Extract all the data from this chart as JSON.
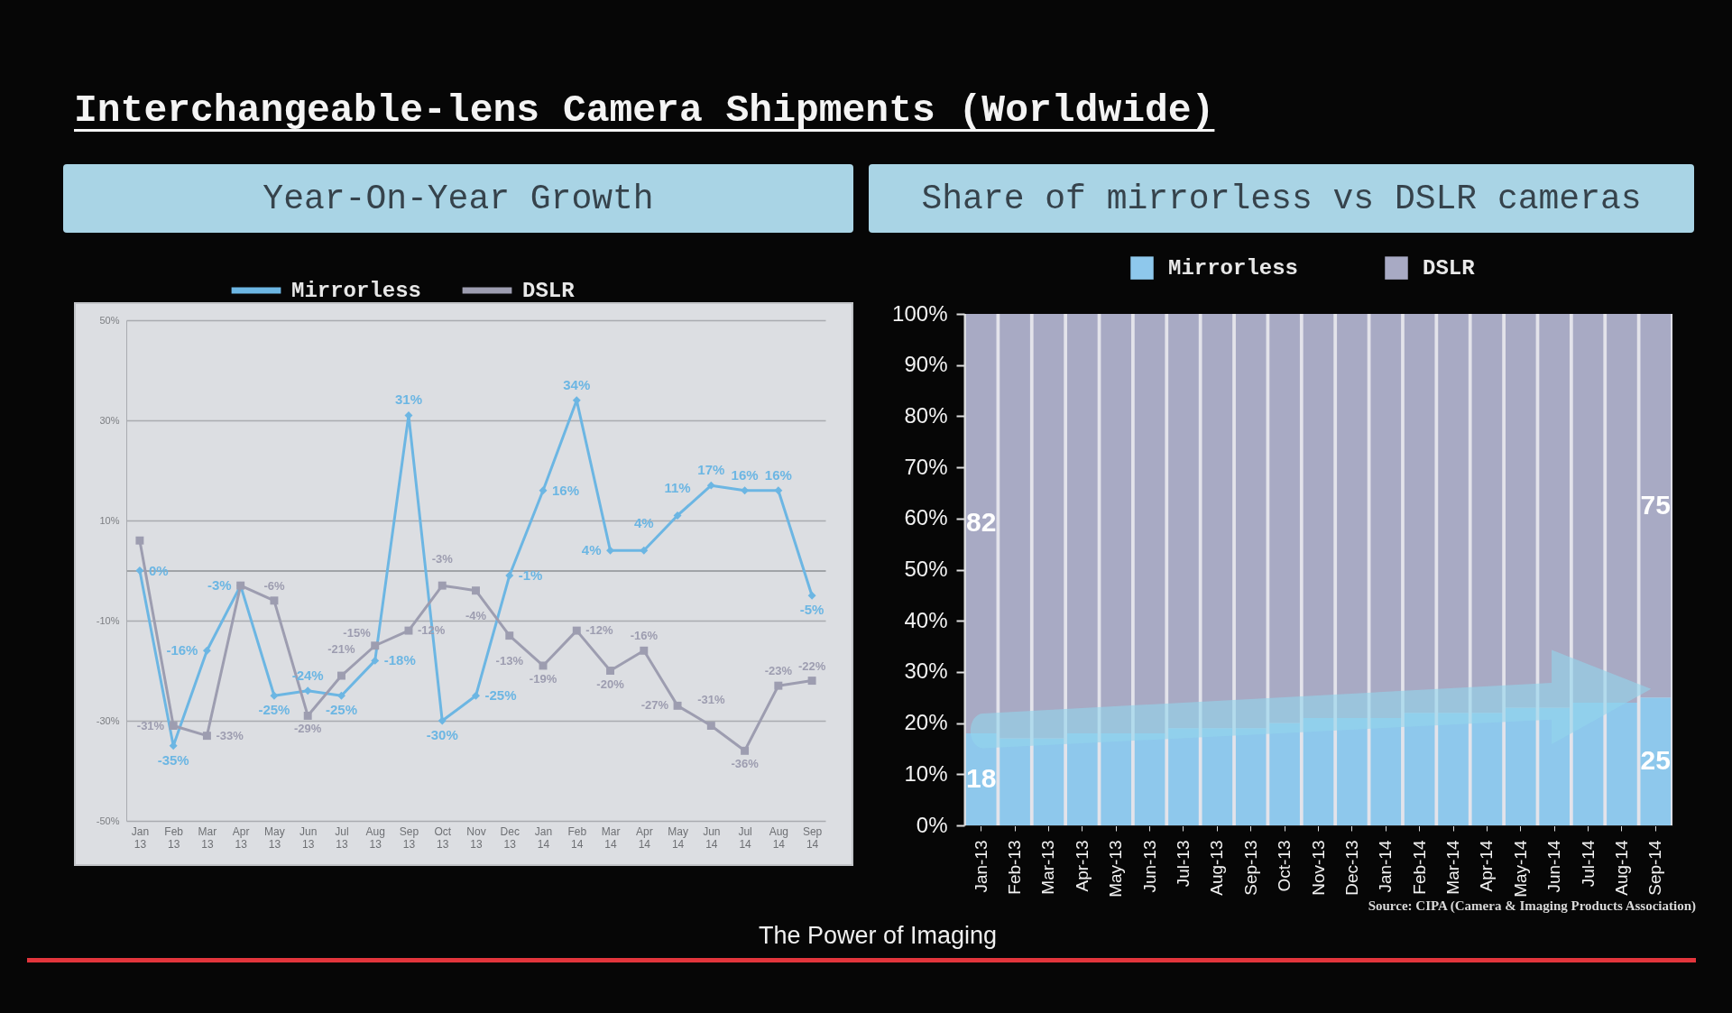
{
  "chart_data": [
    {
      "type": "line",
      "title": "Interchangeable-lens Camera Shipments (Worldwide)",
      "subtitle": "Year-On-Year Growth",
      "annotations": [
        "The Power of Imaging"
      ],
      "categories": [
        "Jan 13",
        "Feb 13",
        "Mar 13",
        "Apr 13",
        "May 13",
        "Jun 13",
        "Jul 13",
        "Aug 13",
        "Sep 13",
        "Oct 13",
        "Nov 13",
        "Dec 13",
        "Jan 14",
        "Feb 14",
        "Mar 14",
        "Apr 14",
        "May 14",
        "Jun 14",
        "Jul 14",
        "Aug 14",
        "Sep 14"
      ],
      "series": [
        {
          "name": "Mirrorless",
          "color": "#6cb6e3",
          "marker": "diamond",
          "values": [
            0,
            -35,
            -16,
            -3,
            -25,
            -24,
            -25,
            -18,
            31,
            -30,
            -25,
            -1,
            16,
            34,
            4,
            4,
            11,
            17,
            16,
            16,
            -5
          ],
          "value_labels": [
            "0%",
            "-35%",
            "-16%",
            "-3%",
            "-25%",
            "-24%",
            "-25%",
            "-18%",
            "31%",
            "-30%",
            "-25%",
            "-1%",
            "16%",
            "34%",
            "4%",
            "4%",
            "11%",
            "17%",
            "16%",
            "16%",
            "-5%"
          ]
        },
        {
          "name": "DSLR",
          "color": "#9d9db0",
          "marker": "square",
          "values": [
            6,
            -31,
            -33,
            -3,
            -6,
            -29,
            -21,
            -15,
            -12,
            -3,
            -4,
            -13,
            -19,
            -12,
            -20,
            -16,
            -27,
            -31,
            -36,
            -23,
            -22
          ],
          "value_labels": [
            null,
            "-31%",
            "-33%",
            null,
            "-6%",
            "-29%",
            "-21%",
            "-15%",
            "-12%",
            "-3%",
            "-4%",
            "-13%",
            "-19%",
            "-12%",
            "-20%",
            "-16%",
            "-27%",
            "-31%",
            "-36%",
            "-23%",
            "-22%"
          ]
        }
      ],
      "ylim": [
        -50,
        50
      ],
      "yticks": [
        {
          "value": -50,
          "label": "-50%"
        },
        {
          "value": -30,
          "label": "-30%"
        },
        {
          "value": -10,
          "label": "-10%"
        },
        {
          "value": 10,
          "label": "10%"
        },
        {
          "value": 30,
          "label": "30%"
        },
        {
          "value": 50,
          "label": "50%"
        }
      ],
      "grid": "y",
      "legend": "top"
    },
    {
      "type": "bar",
      "stacked": true,
      "title": "Share of mirrorless vs DSLR cameras",
      "annotations": [
        "Source: CIPA (Camera & Imaging Products Association)"
      ],
      "categories": [
        "Jan-13",
        "Feb-13",
        "Mar-13",
        "Apr-13",
        "May-13",
        "Jun-13",
        "Jul-13",
        "Aug-13",
        "Sep-13",
        "Oct-13",
        "Nov-13",
        "Dec-13",
        "Jan-14",
        "Feb-14",
        "Mar-14",
        "Apr-14",
        "May-14",
        "Jun-14",
        "Jul-14",
        "Aug-14",
        "Sep-14"
      ],
      "series": [
        {
          "name": "Mirrorless",
          "color": "#8ec8ec",
          "values": [
            18,
            17,
            17,
            18,
            18,
            18,
            19,
            19,
            19,
            20,
            21,
            21,
            21,
            22,
            22,
            22,
            23,
            23,
            24,
            24,
            25
          ],
          "value_labels": [
            "18",
            null,
            null,
            null,
            null,
            null,
            null,
            null,
            null,
            null,
            null,
            null,
            null,
            null,
            null,
            null,
            null,
            null,
            null,
            null,
            "25"
          ]
        },
        {
          "name": "DSLR",
          "color": "#a8aac4",
          "values": [
            82,
            83,
            83,
            82,
            82,
            82,
            81,
            81,
            81,
            80,
            79,
            79,
            79,
            78,
            78,
            78,
            77,
            77,
            76,
            76,
            75
          ],
          "value_labels": [
            "82",
            null,
            null,
            null,
            null,
            null,
            null,
            null,
            null,
            null,
            null,
            null,
            null,
            null,
            null,
            null,
            null,
            null,
            null,
            null,
            "75"
          ]
        }
      ],
      "ylim": [
        0,
        100
      ],
      "yticks": [
        {
          "value": 0,
          "label": "0%"
        },
        {
          "value": 10,
          "label": "10%"
        },
        {
          "value": 20,
          "label": "20%"
        },
        {
          "value": 30,
          "label": "30%"
        },
        {
          "value": 40,
          "label": "40%"
        },
        {
          "value": 50,
          "label": "50%"
        },
        {
          "value": 60,
          "label": "60%"
        },
        {
          "value": 70,
          "label": "70%"
        },
        {
          "value": 80,
          "label": "80%"
        },
        {
          "value": 90,
          "label": "90%"
        },
        {
          "value": 100,
          "label": "100%"
        }
      ],
      "legend": "top"
    }
  ]
}
